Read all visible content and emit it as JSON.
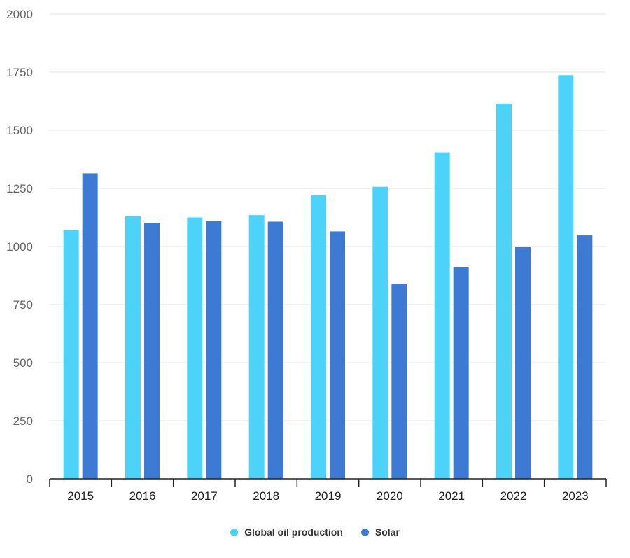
{
  "chart_data": {
    "type": "bar",
    "categories": [
      "2015",
      "2016",
      "2017",
      "2018",
      "2019",
      "2020",
      "2021",
      "2022",
      "2023"
    ],
    "series": [
      {
        "name": "Global oil production",
        "color": "#4dd2f9",
        "values": [
          1070,
          1130,
          1125,
          1135,
          1220,
          1257,
          1405,
          1615,
          1737
        ]
      },
      {
        "name": "Solar",
        "color": "#3d7ad4",
        "values": [
          1315,
          1102,
          1110,
          1107,
          1065,
          838,
          910,
          997,
          1048
        ]
      }
    ],
    "ylim": [
      0,
      2000
    ],
    "yticks": [
      0,
      250,
      500,
      750,
      1000,
      1250,
      1500,
      1750,
      2000
    ],
    "grid": true,
    "legend": "bottom-center"
  }
}
